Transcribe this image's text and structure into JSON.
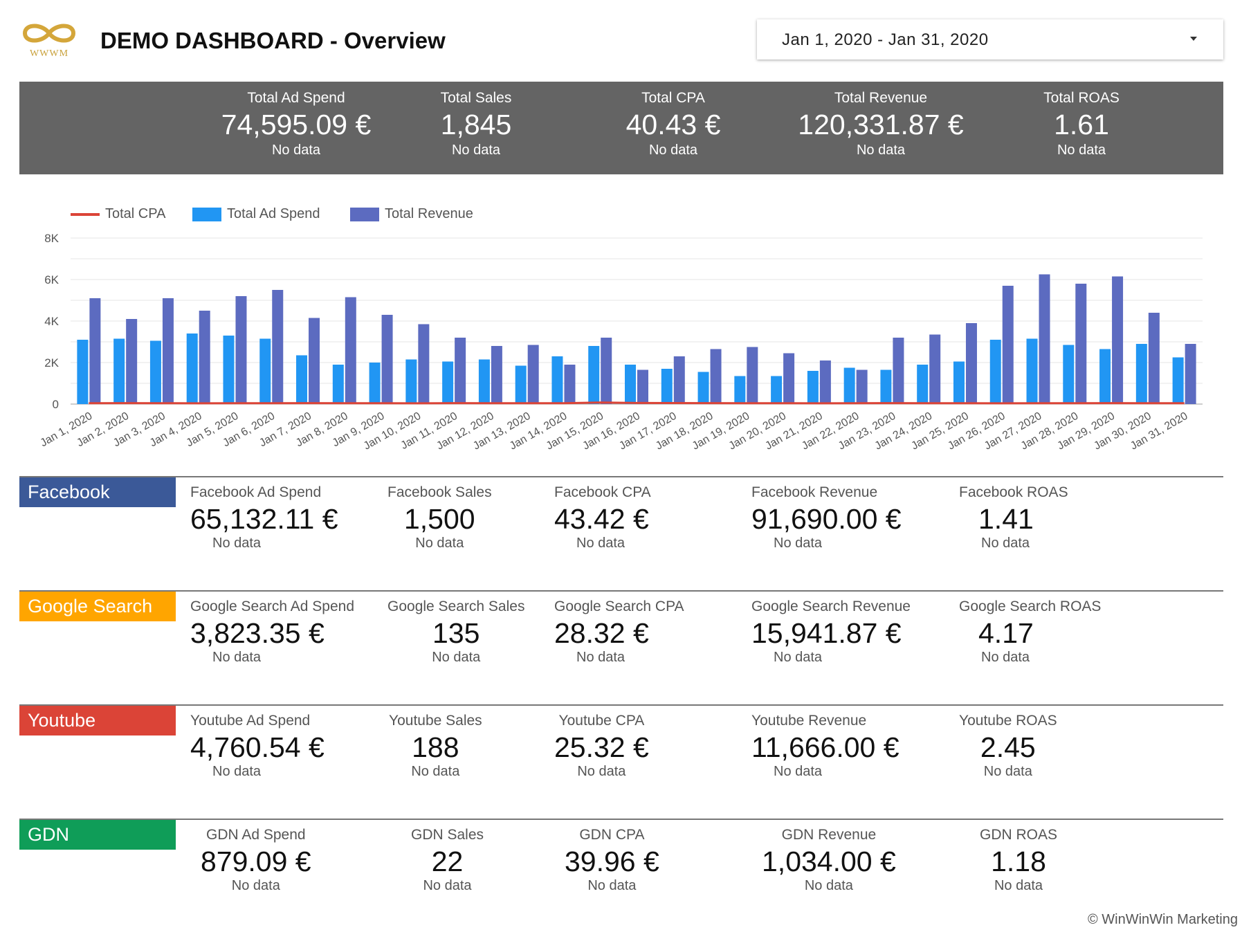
{
  "header": {
    "logo_text": "WWWM",
    "title": "DEMO DASHBOARD - Overview",
    "date_range": "Jan 1, 2020 - Jan 31, 2020"
  },
  "totals": [
    {
      "label": "Total Ad Spend",
      "value": "74,595.09 €",
      "sub": "No data"
    },
    {
      "label": "Total Sales",
      "value": "1,845",
      "sub": "No data"
    },
    {
      "label": "Total CPA",
      "value": "40.43 €",
      "sub": "No data"
    },
    {
      "label": "Total Revenue",
      "value": "120,331.87 €",
      "sub": "No data"
    },
    {
      "label": "Total ROAS",
      "value": "1.61",
      "sub": "No data"
    }
  ],
  "colors": {
    "cpa": "#db4437",
    "ad_spend": "#2196f3",
    "revenue": "#5c6bc0",
    "facebook": "#3b5998",
    "google_search": "#ffa500",
    "youtube": "#db4437",
    "gdn": "#0f9d58"
  },
  "chart_data": {
    "type": "bar",
    "title": "",
    "categories": [
      "Jan 1, 2020",
      "Jan 2, 2020",
      "Jan 3, 2020",
      "Jan 4, 2020",
      "Jan 5, 2020",
      "Jan 6, 2020",
      "Jan 7, 2020",
      "Jan 8, 2020",
      "Jan 9, 2020",
      "Jan 10, 2020",
      "Jan 11, 2020",
      "Jan 12, 2020",
      "Jan 13, 2020",
      "Jan 14, 2020",
      "Jan 15, 2020",
      "Jan 16, 2020",
      "Jan 17, 2020",
      "Jan 18, 2020",
      "Jan 19, 2020",
      "Jan 20, 2020",
      "Jan 21, 2020",
      "Jan 22, 2020",
      "Jan 23, 2020",
      "Jan 24, 2020",
      "Jan 25, 2020",
      "Jan 26, 2020",
      "Jan 27, 2020",
      "Jan 28, 2020",
      "Jan 29, 2020",
      "Jan 30, 2020",
      "Jan 31, 2020"
    ],
    "series": [
      {
        "name": "Total CPA",
        "kind": "line",
        "values": [
          40,
          45,
          42,
          38,
          44,
          40,
          45,
          42,
          40,
          38,
          45,
          42,
          40,
          44,
          75,
          55,
          50,
          45,
          40,
          42,
          38,
          40,
          45,
          42,
          40,
          38,
          40,
          42,
          45,
          40,
          40
        ]
      },
      {
        "name": "Total Ad Spend",
        "kind": "bar",
        "values": [
          3100,
          3150,
          3050,
          3400,
          3300,
          3150,
          2350,
          1900,
          2000,
          2150,
          2050,
          2150,
          1850,
          2300,
          2800,
          1900,
          1700,
          1550,
          1350,
          1350,
          1600,
          1750,
          1650,
          1900,
          2050,
          3100,
          3150,
          2850,
          2650,
          2900,
          2250
        ]
      },
      {
        "name": "Total Revenue",
        "kind": "bar",
        "values": [
          5100,
          4100,
          5100,
          4500,
          5200,
          5500,
          4150,
          5150,
          4300,
          3850,
          3200,
          2800,
          2850,
          1900,
          3200,
          1650,
          2300,
          2650,
          2750,
          2450,
          2100,
          1650,
          3200,
          3350,
          3900,
          5700,
          6250,
          5800,
          6150,
          4400,
          2900
        ]
      }
    ],
    "xlabel": "",
    "ylabel": "",
    "ylim": [
      0,
      8000
    ],
    "yticks": [
      "0",
      "2K",
      "4K",
      "6K",
      "8K"
    ],
    "legend": [
      "Total CPA",
      "Total Ad Spend",
      "Total Revenue"
    ],
    "legend_position": "top-left",
    "grid": true
  },
  "channels": [
    {
      "name": "Facebook",
      "metrics": [
        {
          "label": "Facebook Ad Spend",
          "value": "65,132.11 €",
          "sub": "No data"
        },
        {
          "label": "Facebook Sales",
          "value": "1,500",
          "sub": "No data"
        },
        {
          "label": "Facebook CPA",
          "value": "43.42 €",
          "sub": "No data"
        },
        {
          "label": "Facebook Revenue",
          "value": "91,690.00 €",
          "sub": "No data"
        },
        {
          "label": "Facebook ROAS",
          "value": "1.41",
          "sub": "No data"
        }
      ]
    },
    {
      "name": "Google Search",
      "metrics": [
        {
          "label": "Google Search Ad Spend",
          "value": "3,823.35 €",
          "sub": "No data"
        },
        {
          "label": "Google Search Sales",
          "value": "135",
          "sub": "No data"
        },
        {
          "label": "Google Search CPA",
          "value": "28.32 €",
          "sub": "No data"
        },
        {
          "label": "Google Search Revenue",
          "value": "15,941.87 €",
          "sub": "No data"
        },
        {
          "label": "Google Search ROAS",
          "value": "4.17",
          "sub": "No data"
        }
      ]
    },
    {
      "name": "Youtube",
      "metrics": [
        {
          "label": "Youtube Ad Spend",
          "value": "4,760.54 €",
          "sub": "No data"
        },
        {
          "label": "Youtube Sales",
          "value": "188",
          "sub": "No data"
        },
        {
          "label": "Youtube CPA",
          "value": "25.32 €",
          "sub": "No data"
        },
        {
          "label": "Youtube Revenue",
          "value": "11,666.00 €",
          "sub": "No data"
        },
        {
          "label": "Youtube ROAS",
          "value": "2.45",
          "sub": "No data"
        }
      ]
    },
    {
      "name": "GDN",
      "metrics": [
        {
          "label": "GDN Ad Spend",
          "value": "879.09 €",
          "sub": "No data"
        },
        {
          "label": "GDN Sales",
          "value": "22",
          "sub": "No data"
        },
        {
          "label": "GDN CPA",
          "value": "39.96 €",
          "sub": "No data"
        },
        {
          "label": "GDN Revenue",
          "value": "1,034.00 €",
          "sub": "No data"
        },
        {
          "label": "GDN ROAS",
          "value": "1.18",
          "sub": "No data"
        }
      ]
    }
  ],
  "footer": {
    "copyright": "© WinWinWin Marketing"
  }
}
